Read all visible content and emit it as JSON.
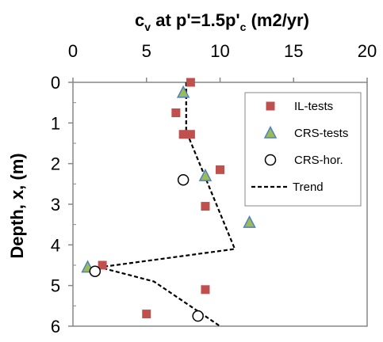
{
  "chart_data": {
    "type": "scatter",
    "title": {
      "main": "c",
      "sub": "v",
      "middle": " at p'=1.5p'",
      "sub2": "c",
      "tail": " (m2/yr)"
    },
    "xlabel": "",
    "ylabel": "Depth, x, (m)",
    "xlim": [
      0,
      20
    ],
    "ylim": [
      0,
      6
    ],
    "y_inverted": true,
    "x_axis_position": "top",
    "x_ticks": [
      "0",
      "5",
      "10",
      "15",
      "20"
    ],
    "y_ticks": [
      "0",
      "1",
      "2",
      "3",
      "4",
      "5",
      "6"
    ],
    "grid": false,
    "legend_position": "right",
    "series": [
      {
        "name": "IL-tests",
        "marker": "square",
        "color": "#C0504D",
        "points": [
          {
            "x": 8.0,
            "y": 0.0
          },
          {
            "x": 7.0,
            "y": 0.75
          },
          {
            "x": 7.5,
            "y": 1.28
          },
          {
            "x": 8.0,
            "y": 1.28
          },
          {
            "x": 10.0,
            "y": 2.15
          },
          {
            "x": 9.0,
            "y": 3.05
          },
          {
            "x": 2.0,
            "y": 4.5
          },
          {
            "x": 9.0,
            "y": 5.1
          },
          {
            "x": 5.0,
            "y": 5.7
          }
        ]
      },
      {
        "name": "CRS-tests",
        "marker": "triangle",
        "color": "#9BBB59",
        "stroke": "#4F81BD",
        "points": [
          {
            "x": 7.5,
            "y": 0.25
          },
          {
            "x": 9.0,
            "y": 2.3
          },
          {
            "x": 12.0,
            "y": 3.45
          },
          {
            "x": 1.0,
            "y": 4.55
          }
        ]
      },
      {
        "name": "CRS-hor.",
        "marker": "circle-open",
        "color": "#000000",
        "points": [
          {
            "x": 7.5,
            "y": 2.4
          },
          {
            "x": 1.5,
            "y": 4.65
          },
          {
            "x": 8.5,
            "y": 5.75
          }
        ]
      },
      {
        "name": "Trend",
        "marker": "dashed-line",
        "color": "#000000",
        "points": [
          {
            "x": 7.7,
            "y": 0.0
          },
          {
            "x": 7.7,
            "y": 1.2
          },
          {
            "x": 11.0,
            "y": 4.1
          },
          {
            "x": 1.8,
            "y": 4.55
          },
          {
            "x": 5.5,
            "y": 4.9
          },
          {
            "x": 10.0,
            "y": 6.0
          }
        ]
      }
    ]
  }
}
